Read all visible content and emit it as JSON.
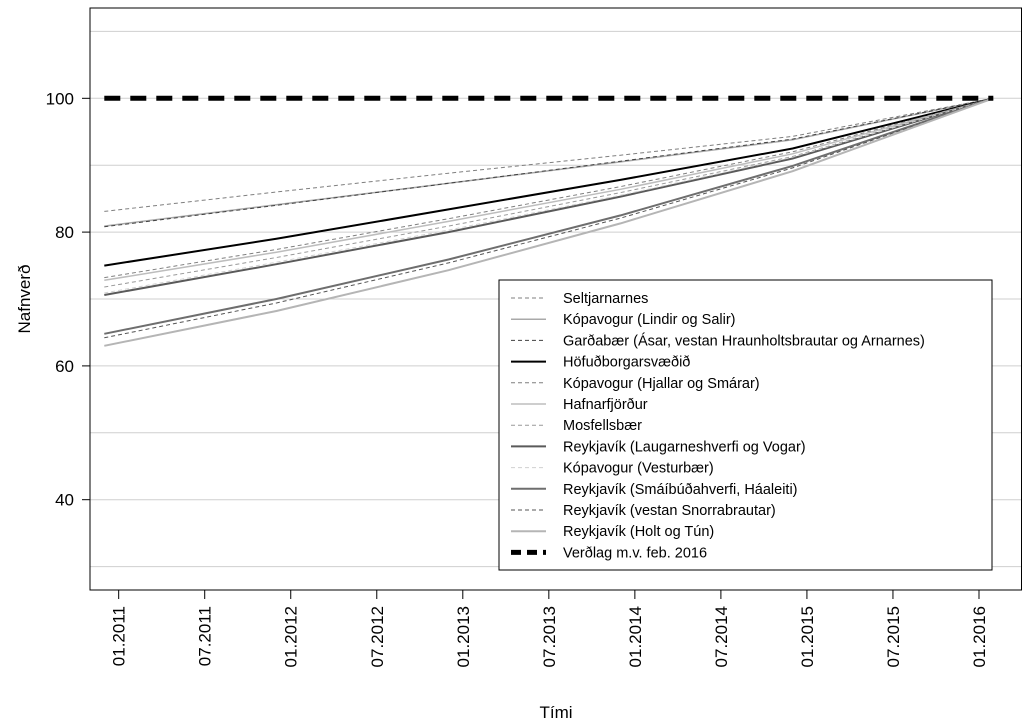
{
  "chart_data": {
    "type": "line",
    "xlabel": "Tími",
    "ylabel": "Nafnverð",
    "x_ticks": [
      "01.2011",
      "07.2011",
      "01.2012",
      "07.2012",
      "01.2013",
      "07.2013",
      "01.2014",
      "07.2014",
      "01.2015",
      "07.2015",
      "01.2016"
    ],
    "y_ticks": [
      40,
      60,
      80,
      100
    ],
    "xlim": [
      "2010-11",
      "2016-04"
    ],
    "ylim": [
      26.5,
      113.5
    ],
    "grid": "horizontal",
    "legend_position": "bottom-right",
    "x": [
      "2010-12",
      "2011-12",
      "2012-12",
      "2013-12",
      "2014-12",
      "2016-02"
    ],
    "series": [
      {
        "name": "Seltjarnarnes",
        "style": "dashed",
        "color": "#7f7f7f",
        "width": 1,
        "values": [
          83.1,
          86.0,
          88.8,
          91.5,
          94.3,
          100
        ]
      },
      {
        "name": "Kópavogur (Lindir og Salir)",
        "style": "solid",
        "color": "#a9a9a9",
        "width": 1.5,
        "values": [
          80.9,
          84.1,
          87.3,
          90.5,
          93.8,
          100
        ]
      },
      {
        "name": "Garðabær (Ásar, vestan Hraunholtsbrautar og Arnarnes)",
        "style": "dashed",
        "color": "#404040",
        "width": 1,
        "values": [
          80.8,
          84.0,
          87.3,
          90.6,
          93.9,
          100
        ]
      },
      {
        "name": "Höfuðborgarsvæðið",
        "style": "solid",
        "color": "#000000",
        "width": 2,
        "values": [
          75.0,
          79.0,
          83.4,
          87.8,
          92.5,
          100
        ]
      },
      {
        "name": "Kópavogur (Hjallar og Smárar)",
        "style": "dashed",
        "color": "#7f7f7f",
        "width": 1,
        "values": [
          73.2,
          77.4,
          82.0,
          86.8,
          92.0,
          100
        ]
      },
      {
        "name": "Hafnarfjörður",
        "style": "solid",
        "color": "#bdbdbd",
        "width": 1.5,
        "values": [
          72.8,
          77.0,
          81.6,
          86.4,
          91.7,
          100
        ]
      },
      {
        "name": "Mosfellsbær",
        "style": "dashed",
        "color": "#999999",
        "width": 1,
        "values": [
          71.8,
          76.2,
          80.9,
          85.9,
          91.3,
          100
        ]
      },
      {
        "name": "Reykjavík (Laugarneshverfi og Vogar)",
        "style": "solid",
        "color": "#5a5a5a",
        "width": 2,
        "values": [
          70.6,
          75.2,
          80.0,
          85.3,
          91.0,
          100
        ]
      },
      {
        "name": "Kópavogur (Vesturbær)",
        "style": "dashed",
        "color": "#d0d0d0",
        "width": 1,
        "values": [
          70.9,
          75.5,
          80.3,
          85.5,
          91.2,
          100
        ]
      },
      {
        "name": "Reykjavík (Smáíbúðahverfi, Háaleiti)",
        "style": "solid",
        "color": "#6e6e6e",
        "width": 2,
        "values": [
          64.8,
          70.0,
          75.9,
          82.5,
          89.9,
          100
        ]
      },
      {
        "name": "Reykjavík (vestan Snorrabrautar)",
        "style": "dashed",
        "color": "#555555",
        "width": 1,
        "values": [
          64.2,
          69.4,
          75.4,
          82.1,
          89.6,
          100
        ]
      },
      {
        "name": "Reykjavík (Holt og Tún)",
        "style": "solid",
        "color": "#b5b5b5",
        "width": 2,
        "values": [
          63.0,
          68.2,
          74.3,
          81.3,
          89.1,
          100
        ]
      },
      {
        "name": "Verðlag m.v. feb. 2016",
        "style": "thick-dashed",
        "color": "#000000",
        "width": 5,
        "values": [
          100,
          100,
          100,
          100,
          100,
          100
        ]
      }
    ]
  }
}
